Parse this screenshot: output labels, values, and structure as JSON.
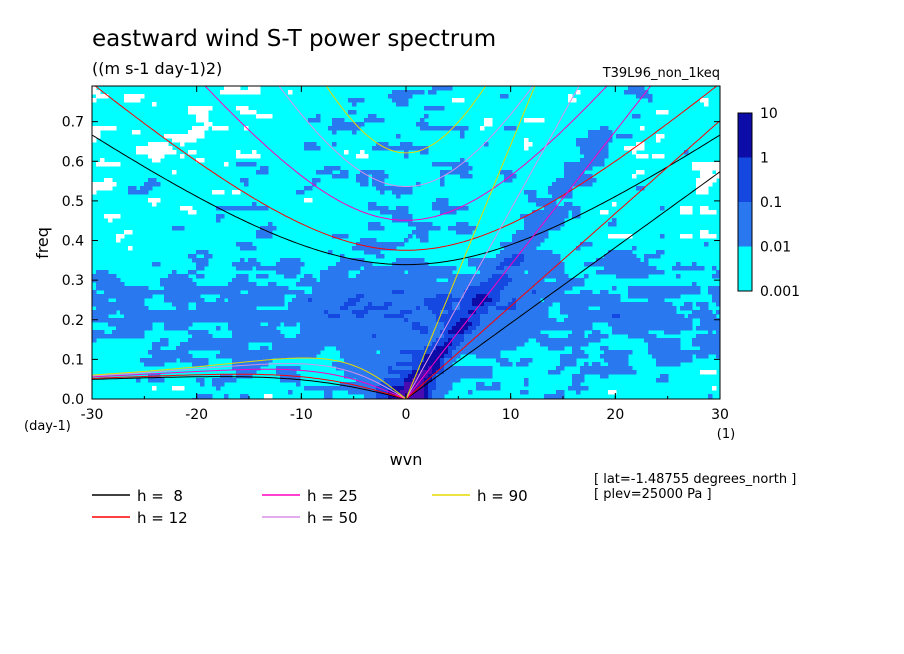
{
  "chart_data": {
    "type": "heatmap",
    "title": "eastward wind S-T power spectrum",
    "subtitle": "((m s-1 day-1)2)",
    "run_label": "T39L96_non_1keq",
    "xlabel": "wvn",
    "ylabel": "freq",
    "x_unit": "(1)",
    "y_unit": "(day-1)",
    "xlim": [
      -30,
      30
    ],
    "ylim": [
      0,
      0.79
    ],
    "x_ticks": [
      -30,
      -20,
      -10,
      0,
      10,
      20,
      30
    ],
    "y_ticks": [
      0.0,
      0.1,
      0.2,
      0.3,
      0.4,
      0.5,
      0.6,
      0.7
    ],
    "x_tick_labels": [
      "-30",
      "-20",
      "-10",
      "0",
      "10",
      "20",
      "30"
    ],
    "y_tick_labels": [
      "0.0",
      "0.1",
      "0.2",
      "0.3",
      "0.4",
      "0.5",
      "0.6",
      "0.7"
    ],
    "colorbar": {
      "levels": [
        0.001,
        0.01,
        0.1,
        1,
        10
      ],
      "labels": [
        "0.001",
        "0.01",
        "0.1",
        "1",
        "10"
      ],
      "colors": [
        "#00ffff",
        "#2a78f0",
        "#1448e0",
        "#0c0ca8",
        "#4a0cb0"
      ],
      "low_color": "#ffffff"
    },
    "series": [
      {
        "name": "h =  8",
        "label": "h =  8",
        "equivalent_depth_m": 8,
        "color": "#000000"
      },
      {
        "name": "h = 12",
        "label": "h = 12",
        "equivalent_depth_m": 12,
        "color": "#ff0000"
      },
      {
        "name": "h = 25",
        "label": "h = 25",
        "equivalent_depth_m": 25,
        "color": "#ff00c0"
      },
      {
        "name": "h = 50",
        "label": "h = 50",
        "equivalent_depth_m": 50,
        "color": "#d890e8"
      },
      {
        "name": "h = 90",
        "label": "h = 90",
        "equivalent_depth_m": 90,
        "color": "#e8d800"
      }
    ],
    "annotations": [
      "[ lat=-1.48755 degrees_north ]",
      "[ plev=25000 Pa ]"
    ]
  }
}
